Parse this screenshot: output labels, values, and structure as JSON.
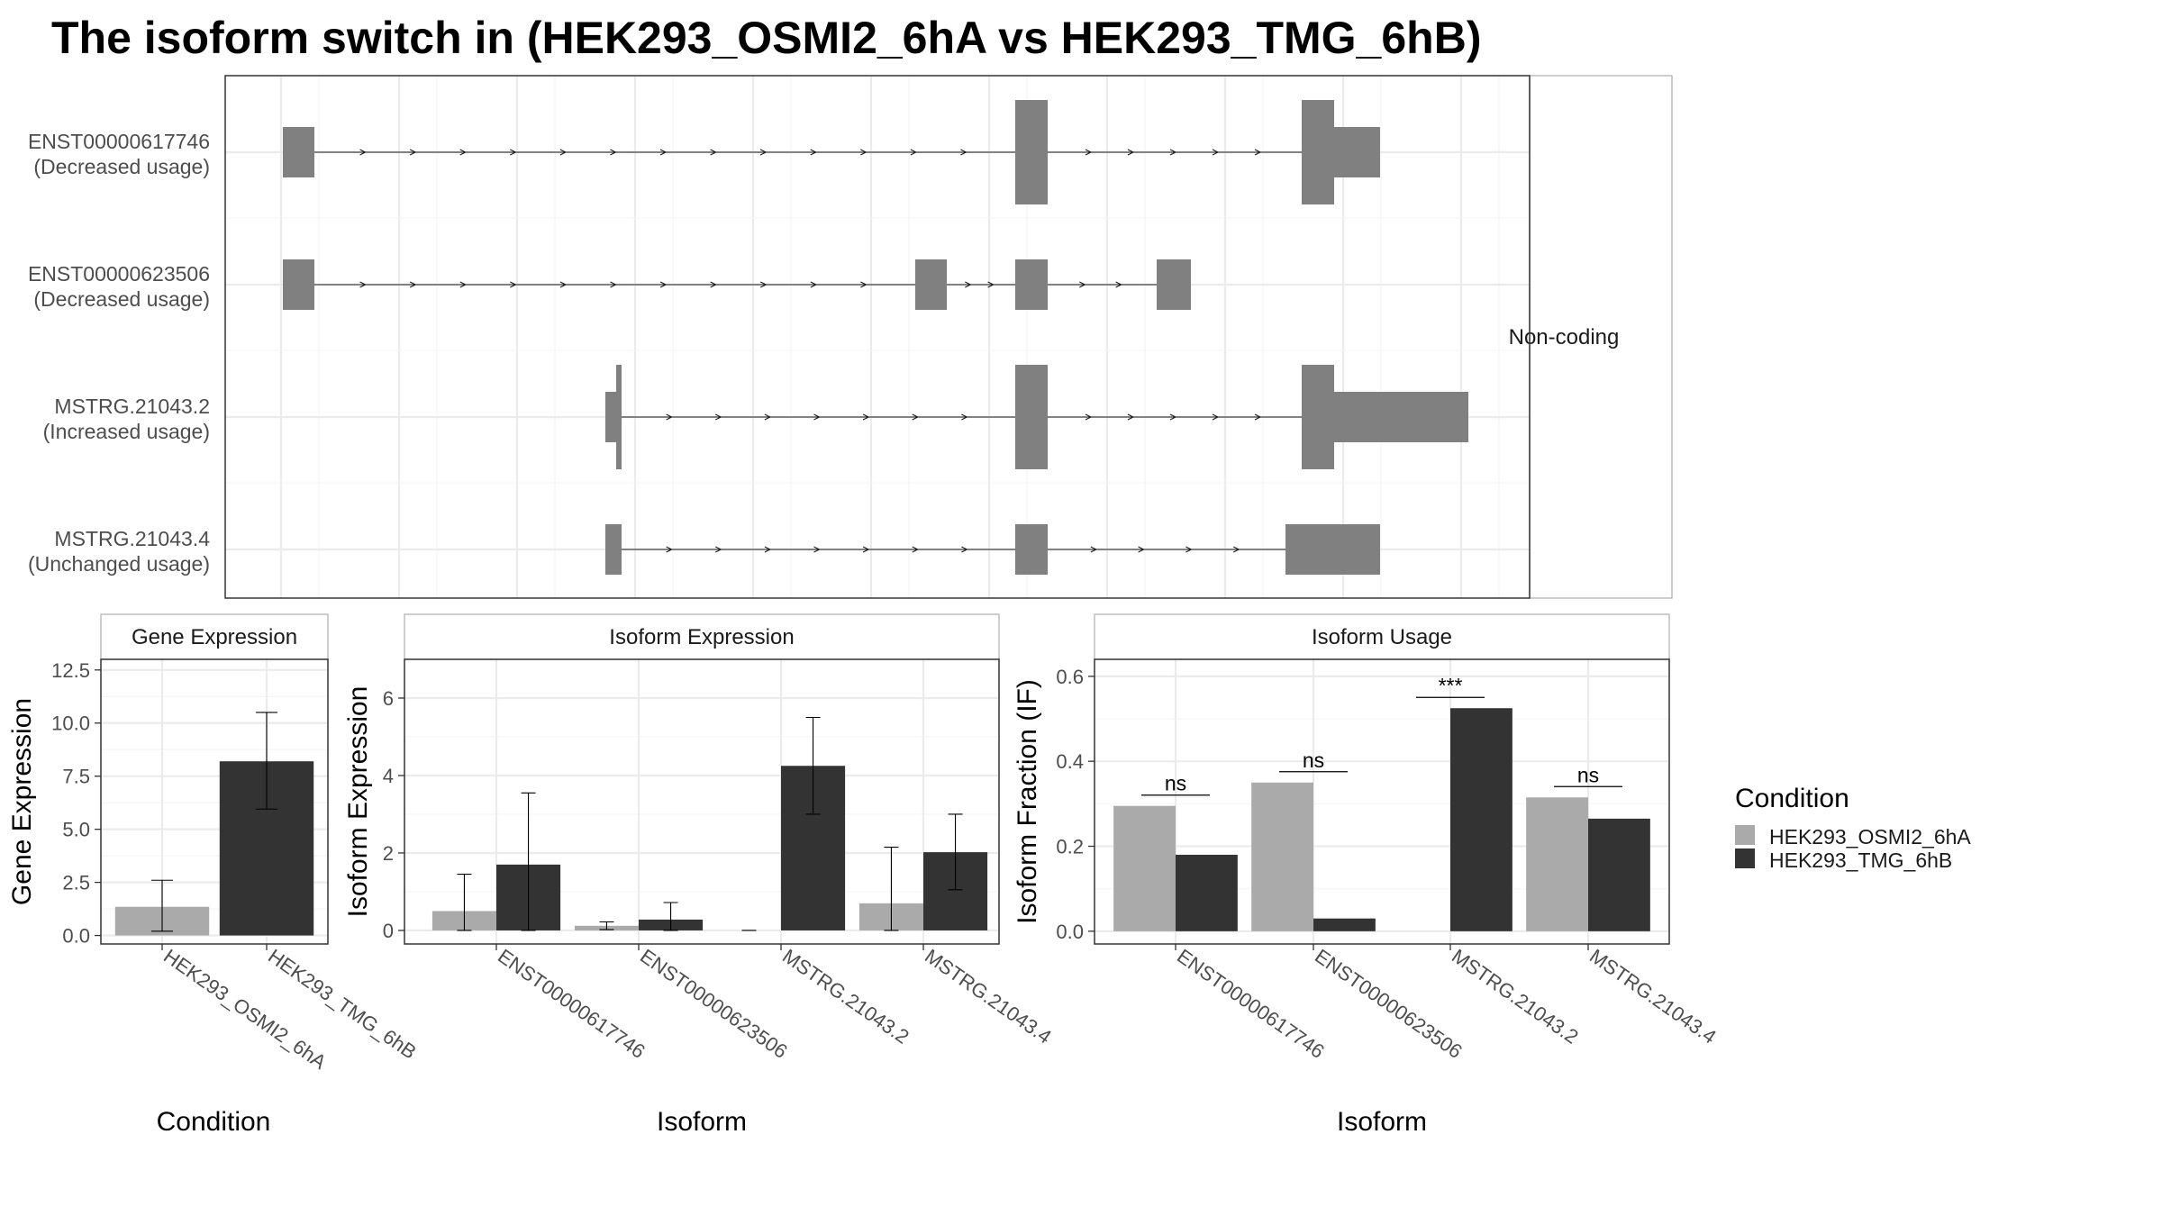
{
  "title": "The isoform switch in  (HEK293_OSMI2_6hA vs HEK293_TMG_6hB)",
  "colors": {
    "structure": "#808080",
    "HEK293_OSMI2_6hA": "#aaaaaa",
    "HEK293_TMG_6hB": "#333333",
    "panel_border": "#333333",
    "grid": "#ebebeb"
  },
  "structure_plot": {
    "strip_label": "Non-coding",
    "transcripts": [
      {
        "name": "ENST00000617746",
        "usage": "(Decreased usage)"
      },
      {
        "name": "ENST00000623506",
        "usage": "(Decreased usage)"
      },
      {
        "name": "MSTRG.21043.2",
        "usage": "(Increased usage)"
      },
      {
        "name": "MSTRG.21043.4",
        "usage": "(Unchanged usage)"
      }
    ]
  },
  "chart_data": [
    {
      "type": "bar",
      "title": "Gene Expression",
      "xlabel": "Condition",
      "ylabel": "Gene Expression",
      "ylim": [
        -0.4,
        13.0
      ],
      "yticks": [
        "0.0",
        "2.5",
        "5.0",
        "7.5",
        "10.0",
        "12.5"
      ],
      "categories": [
        "HEK293_OSMI2_6hA",
        "HEK293_TMG_6hB"
      ],
      "values": [
        1.35,
        8.2
      ],
      "error_low": [
        0.2,
        5.95
      ],
      "error_high": [
        2.6,
        10.5
      ],
      "grid": true
    },
    {
      "type": "bar",
      "title": "Isoform Expression",
      "xlabel": "Isoform",
      "ylabel": "Isoform Expression",
      "ylim": [
        -0.35,
        7.0
      ],
      "yticks": [
        "0",
        "2",
        "4",
        "6"
      ],
      "categories": [
        "ENST00000617746",
        "ENST00000623506",
        "MSTRG.21043.2",
        "MSTRG.21043.4"
      ],
      "series": [
        {
          "name": "HEK293_OSMI2_6hA",
          "values": [
            0.5,
            0.12,
            0.0,
            0.7
          ],
          "error_low": [
            0.0,
            0.02,
            0.0,
            0.0
          ],
          "error_high": [
            1.45,
            0.22,
            0.0,
            2.15
          ]
        },
        {
          "name": "HEK293_TMG_6hB",
          "values": [
            1.7,
            0.28,
            4.25,
            2.02
          ],
          "error_low": [
            0.0,
            0.0,
            3.0,
            1.05
          ],
          "error_high": [
            3.55,
            0.72,
            5.5,
            3.0
          ]
        }
      ],
      "grid": true
    },
    {
      "type": "bar",
      "title": "Isoform Usage",
      "xlabel": "Isoform",
      "ylabel": "Isoform Fraction (IF)",
      "ylim": [
        -0.03,
        0.64
      ],
      "yticks": [
        "0.0",
        "0.2",
        "0.4",
        "0.6"
      ],
      "categories": [
        "ENST00000617746",
        "ENST00000623506",
        "MSTRG.21043.2",
        "MSTRG.21043.4"
      ],
      "series": [
        {
          "name": "HEK293_OSMI2_6hA",
          "values": [
            0.295,
            0.35,
            0.0,
            0.315
          ]
        },
        {
          "name": "HEK293_TMG_6hB",
          "values": [
            0.18,
            0.03,
            0.525,
            0.265
          ]
        }
      ],
      "significance": [
        "ns",
        "ns",
        "***",
        "ns"
      ],
      "grid": true
    }
  ],
  "legend": {
    "title": "Condition",
    "position": "right",
    "items": [
      "HEK293_OSMI2_6hA",
      "HEK293_TMG_6hB"
    ]
  }
}
